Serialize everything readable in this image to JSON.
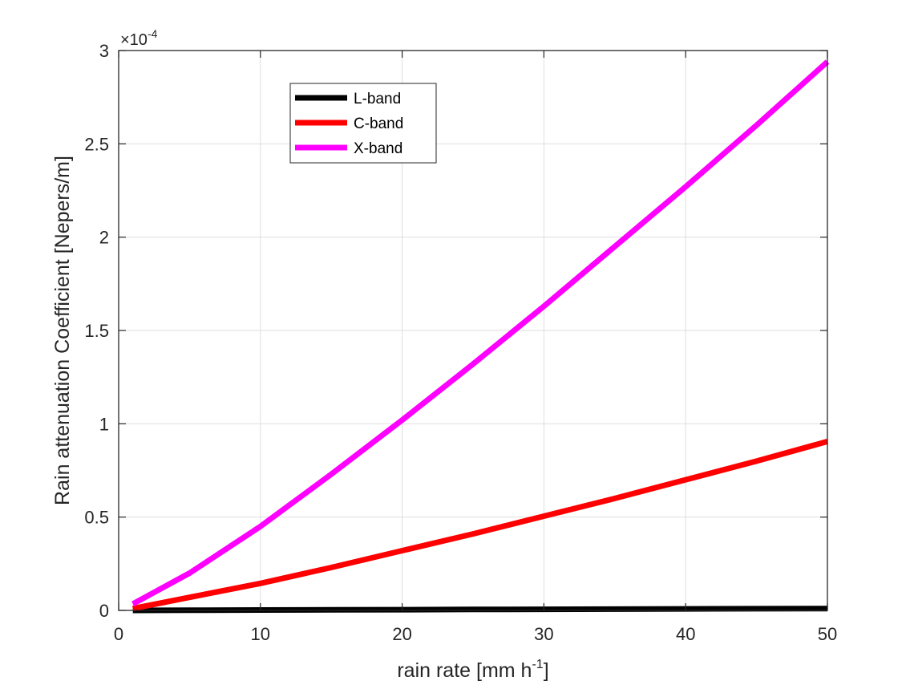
{
  "chart_data": {
    "type": "line",
    "title": "",
    "xlabel": {
      "base": "rain rate [mm h",
      "sup": "-1",
      "end": "]"
    },
    "ylabel": "Rain attenuation Coefficient [Nepers/m]",
    "xlim": [
      0,
      50
    ],
    "ylim": [
      0,
      3
    ],
    "y_exponent": {
      "base": "×10",
      "power": "-4"
    },
    "xticks": [
      0,
      10,
      20,
      30,
      40,
      50
    ],
    "xtick_labels": [
      "0",
      "10",
      "20",
      "30",
      "40",
      "50"
    ],
    "yticks": [
      0,
      0.5,
      1,
      1.5,
      2,
      2.5,
      3
    ],
    "ytick_labels": [
      "0",
      "0.5",
      "1",
      "1.5",
      "2",
      "2.5",
      "3"
    ],
    "grid": true,
    "legend_position": "top-left-inside",
    "x": [
      1,
      5,
      10,
      15,
      20,
      25,
      30,
      35,
      40,
      45,
      50
    ],
    "series": [
      {
        "name": "L-band",
        "color": "#000000",
        "values": [
          0.0002,
          0.001,
          0.002,
          0.003,
          0.004,
          0.005,
          0.006,
          0.007,
          0.008,
          0.009,
          0.01
        ]
      },
      {
        "name": "C-band",
        "color": "#ff0000",
        "values": [
          0.01,
          0.07,
          0.145,
          0.23,
          0.32,
          0.41,
          0.505,
          0.6,
          0.7,
          0.8,
          0.905
        ]
      },
      {
        "name": "X-band",
        "color": "#ff00ff",
        "values": [
          0.035,
          0.2,
          0.45,
          0.73,
          1.02,
          1.32,
          1.63,
          1.95,
          2.27,
          2.6,
          2.94
        ]
      }
    ]
  }
}
